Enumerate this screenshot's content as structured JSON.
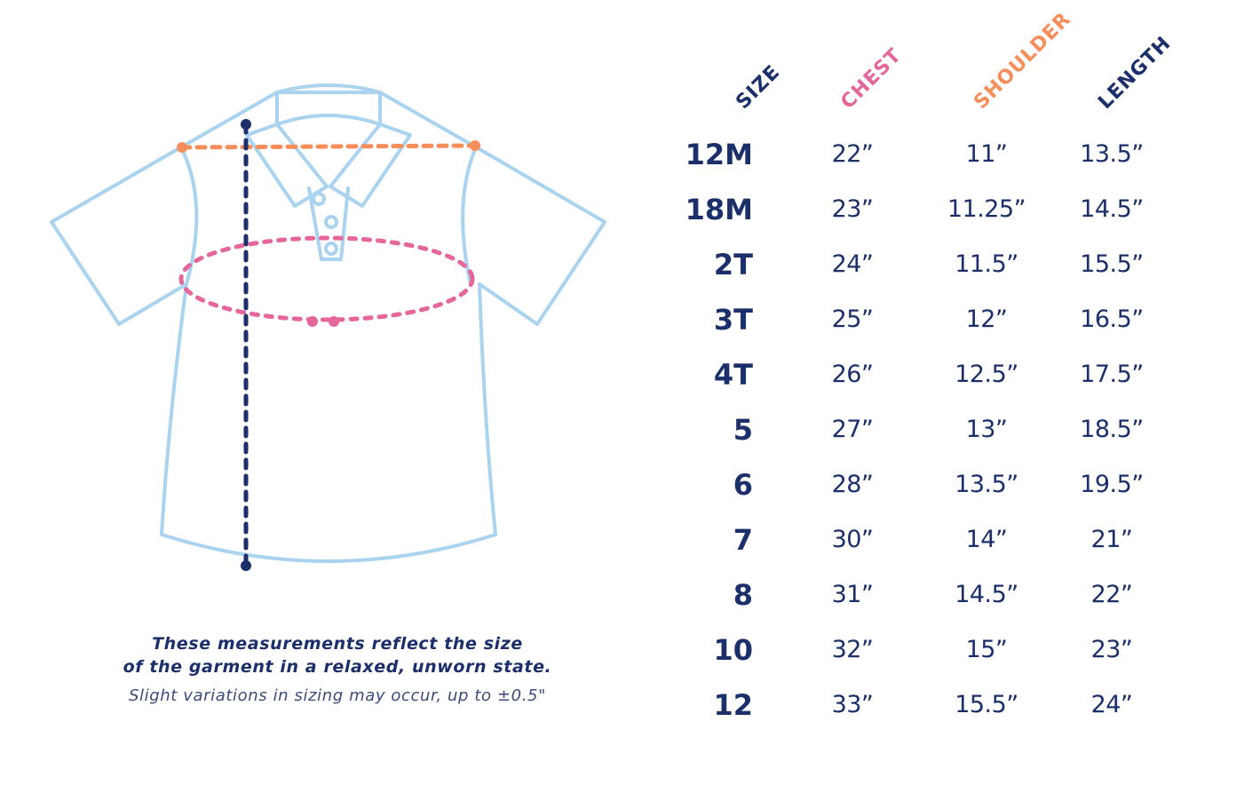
{
  "colors": {
    "navy": "#1b2f6b",
    "shirt_outline": "#a9d3ef",
    "chest_pink": "#e5669b",
    "shoulder_orange": "#f58e5a",
    "length_navy": "#1b2f6b"
  },
  "table": {
    "headers": {
      "size": "SIZE",
      "chest": "CHEST",
      "shoulder": "SHOULDER",
      "length": "LENGTH"
    },
    "rows": [
      {
        "size": "12M",
        "chest": "22”",
        "shoulder": "11”",
        "length": "13.5”"
      },
      {
        "size": "18M",
        "chest": "23”",
        "shoulder": "11.25”",
        "length": "14.5”"
      },
      {
        "size": "2T",
        "chest": "24”",
        "shoulder": "11.5”",
        "length": "15.5”"
      },
      {
        "size": "3T",
        "chest": "25”",
        "shoulder": "12”",
        "length": "16.5”"
      },
      {
        "size": "4T",
        "chest": "26”",
        "shoulder": "12.5”",
        "length": "17.5”"
      },
      {
        "size": "5",
        "chest": "27”",
        "shoulder": "13”",
        "length": "18.5”"
      },
      {
        "size": "6",
        "chest": "28”",
        "shoulder": "13.5”",
        "length": "19.5”"
      },
      {
        "size": "7",
        "chest": "30”",
        "shoulder": "14”",
        "length": "21”"
      },
      {
        "size": "8",
        "chest": "31”",
        "shoulder": "14.5”",
        "length": "22”"
      },
      {
        "size": "10",
        "chest": "32”",
        "shoulder": "15”",
        "length": "23”"
      },
      {
        "size": "12",
        "chest": "33”",
        "shoulder": "15.5”",
        "length": "24”"
      }
    ]
  },
  "notes": {
    "line1": "These measurements reflect the size",
    "line2": "of the garment in a relaxed, unworn state.",
    "line3": "Slight variations in sizing may occur, up to ±0.5\""
  }
}
